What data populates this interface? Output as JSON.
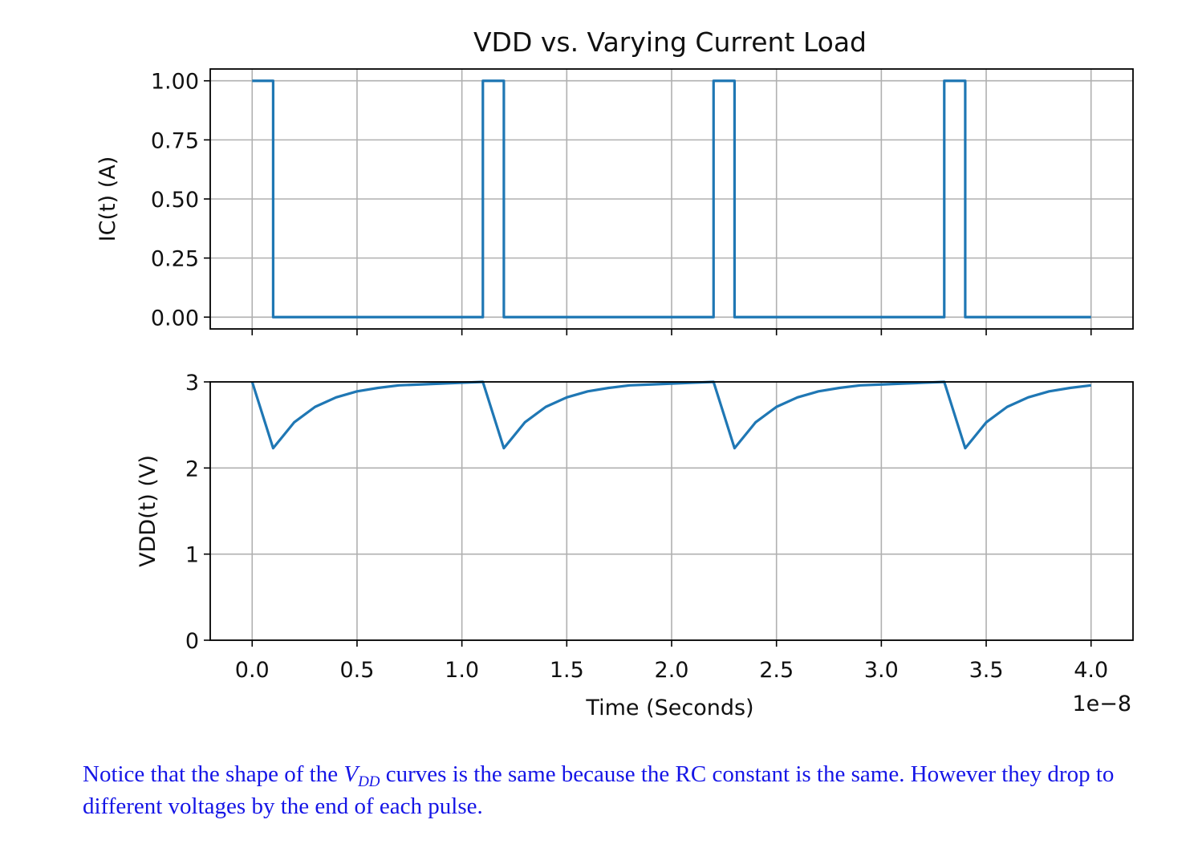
{
  "chart_data": {
    "title": "VDD vs. Varying Current Load",
    "xlabel": "Time (Seconds)",
    "x_offset_text": "1e−8",
    "xlim": [
      -2e-09,
      4.2e-08
    ],
    "x_ticks": [
      0.0,
      5e-09,
      1e-08,
      1.5e-08,
      2e-08,
      2.5e-08,
      3e-08,
      3.5e-08,
      4e-08
    ],
    "x_tick_labels": [
      "0.0",
      "0.5",
      "1.0",
      "1.5",
      "2.0",
      "2.5",
      "3.0",
      "3.5",
      "4.0"
    ],
    "grid": true,
    "color": "#1f77b4",
    "subplots": [
      {
        "type": "line",
        "ylabel": "IC(t) (A)",
        "ylim": [
          -0.05,
          1.05
        ],
        "y_ticks": [
          0.0,
          0.25,
          0.5,
          0.75,
          1.0
        ],
        "y_tick_labels": [
          "0.00",
          "0.25",
          "0.50",
          "0.75",
          "1.00"
        ],
        "x": [
          0.0,
          1e-09,
          1e-09,
          1.1e-08,
          1.1e-08,
          1.2e-08,
          1.2e-08,
          2.2e-08,
          2.2e-08,
          2.3e-08,
          2.3e-08,
          3.3e-08,
          3.3e-08,
          3.4e-08,
          3.4e-08,
          4e-08
        ],
        "y": [
          1.0,
          1.0,
          0.0,
          0.0,
          1.0,
          1.0,
          0.0,
          0.0,
          1.0,
          1.0,
          0.0,
          0.0,
          1.0,
          1.0,
          0.0,
          0.0
        ]
      },
      {
        "type": "line",
        "ylabel": "VDD(t) (V)",
        "ylim": [
          0,
          3
        ],
        "y_ticks": [
          0,
          1,
          2,
          3
        ],
        "y_tick_labels": [
          "0",
          "1",
          "2",
          "3"
        ],
        "x": [
          0.0,
          1e-09,
          2e-09,
          3e-09,
          4e-09,
          5e-09,
          6e-09,
          7e-09,
          8e-09,
          9e-09,
          1e-08,
          1.1e-08,
          1.2e-08,
          1.3e-08,
          1.4e-08,
          1.5e-08,
          1.6e-08,
          1.7e-08,
          1.8e-08,
          1.9e-08,
          2e-08,
          2.1e-08,
          2.2e-08,
          2.3e-08,
          2.4e-08,
          2.5e-08,
          2.6e-08,
          2.7e-08,
          2.8e-08,
          2.9e-08,
          3e-08,
          3.1e-08,
          3.2e-08,
          3.3e-08,
          3.4e-08,
          3.5e-08,
          3.6e-08,
          3.7e-08,
          3.8e-08,
          3.9e-08,
          4e-08
        ],
        "y": [
          3.0,
          2.23,
          2.53,
          2.71,
          2.82,
          2.89,
          2.93,
          2.96,
          2.97,
          2.98,
          2.99,
          3.0,
          2.23,
          2.53,
          2.71,
          2.82,
          2.89,
          2.93,
          2.96,
          2.97,
          2.98,
          2.99,
          3.0,
          2.23,
          2.53,
          2.71,
          2.82,
          2.89,
          2.93,
          2.96,
          2.97,
          2.98,
          2.99,
          3.0,
          2.23,
          2.53,
          2.71,
          2.82,
          2.89,
          2.93,
          2.96
        ]
      }
    ]
  },
  "caption": {
    "before": "Notice that the shape of the ",
    "math_base": "V",
    "math_sub": "DD",
    "after": " curves is the same because the RC constant is the same.  However they drop to different voltages by the end of each pulse."
  }
}
